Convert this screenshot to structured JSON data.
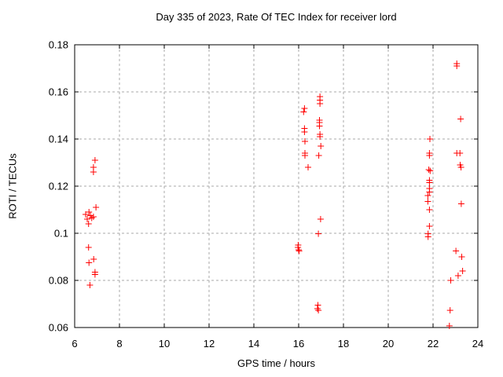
{
  "chart_data": {
    "type": "scatter",
    "title": "Day 335 of 2023, Rate Of TEC Index for receiver lord",
    "xlabel": "GPS time / hours",
    "ylabel": "ROTI / TECUs",
    "xlim": [
      6,
      24
    ],
    "ylim": [
      0.06,
      0.18
    ],
    "xticks": [
      6,
      8,
      10,
      12,
      14,
      16,
      18,
      20,
      22,
      24
    ],
    "xtick_labels": [
      "6",
      "8",
      "10",
      "12",
      "14",
      "16",
      "18",
      "20",
      "22",
      "24"
    ],
    "yticks": [
      0.06,
      0.08,
      0.1,
      0.12,
      0.14,
      0.16,
      0.18
    ],
    "ytick_labels": [
      "0.06",
      "0.08",
      "0.1",
      "0.12",
      "0.14",
      "0.16",
      "0.18"
    ],
    "grid": true,
    "legend_position": "none",
    "marker": "plus",
    "marker_color": "#ff0000",
    "series": [
      {
        "name": "ROTI",
        "points": [
          [
            6.91,
            0.131
          ],
          [
            6.84,
            0.128
          ],
          [
            6.84,
            0.126
          ],
          [
            6.95,
            0.111
          ],
          [
            6.64,
            0.109
          ],
          [
            6.49,
            0.108
          ],
          [
            6.7,
            0.1075
          ],
          [
            6.84,
            0.107
          ],
          [
            6.76,
            0.1065
          ],
          [
            6.56,
            0.106
          ],
          [
            6.62,
            0.104
          ],
          [
            6.62,
            0.094
          ],
          [
            6.85,
            0.089
          ],
          [
            6.64,
            0.0875
          ],
          [
            6.91,
            0.0835
          ],
          [
            6.91,
            0.0825
          ],
          [
            6.68,
            0.078
          ],
          [
            16.95,
            0.158
          ],
          [
            16.95,
            0.1565
          ],
          [
            16.95,
            0.155
          ],
          [
            16.26,
            0.153
          ],
          [
            16.22,
            0.1515
          ],
          [
            16.93,
            0.148
          ],
          [
            16.93,
            0.147
          ],
          [
            16.93,
            0.1455
          ],
          [
            16.95,
            0.142
          ],
          [
            16.95,
            0.141
          ],
          [
            16.26,
            0.1445
          ],
          [
            16.26,
            0.143
          ],
          [
            16.28,
            0.139
          ],
          [
            16.99,
            0.137
          ],
          [
            16.28,
            0.134
          ],
          [
            16.28,
            0.133
          ],
          [
            16.9,
            0.133
          ],
          [
            16.42,
            0.128
          ],
          [
            16.98,
            0.106
          ],
          [
            16.88,
            0.0998
          ],
          [
            15.98,
            0.095
          ],
          [
            15.97,
            0.094
          ],
          [
            16.0,
            0.093
          ],
          [
            16.02,
            0.0925
          ],
          [
            16.86,
            0.0695
          ],
          [
            16.84,
            0.068
          ],
          [
            16.88,
            0.0673
          ],
          [
            23.06,
            0.172
          ],
          [
            23.06,
            0.171
          ],
          [
            23.23,
            0.1485
          ],
          [
            21.86,
            0.14
          ],
          [
            21.84,
            0.134
          ],
          [
            21.84,
            0.133
          ],
          [
            23.06,
            0.134
          ],
          [
            23.2,
            0.134
          ],
          [
            23.21,
            0.129
          ],
          [
            23.25,
            0.128
          ],
          [
            21.81,
            0.127
          ],
          [
            21.87,
            0.1265
          ],
          [
            21.84,
            0.1225
          ],
          [
            21.84,
            0.1215
          ],
          [
            21.84,
            0.119
          ],
          [
            21.84,
            0.1175
          ],
          [
            21.77,
            0.116
          ],
          [
            21.77,
            0.1135
          ],
          [
            21.84,
            0.11
          ],
          [
            21.84,
            0.103
          ],
          [
            21.78,
            0.0998
          ],
          [
            21.78,
            0.0985
          ],
          [
            23.26,
            0.1125
          ],
          [
            23.02,
            0.0925
          ],
          [
            23.28,
            0.09
          ],
          [
            23.32,
            0.084
          ],
          [
            23.12,
            0.082
          ],
          [
            22.79,
            0.08
          ],
          [
            22.76,
            0.0673
          ],
          [
            22.73,
            0.0607
          ]
        ]
      }
    ]
  }
}
